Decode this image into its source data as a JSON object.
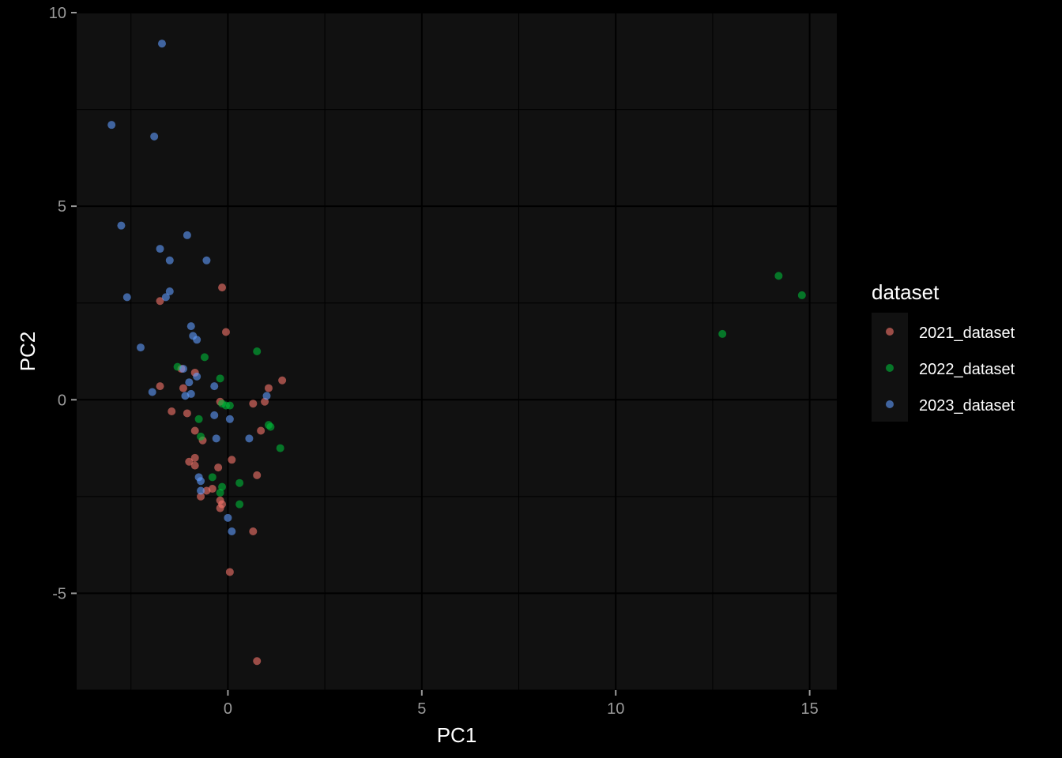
{
  "chart_data": {
    "type": "scatter",
    "title": "",
    "xlabel": "PC1",
    "ylabel": "PC2",
    "xlim": [
      -3.9,
      15.7
    ],
    "ylim": [
      -7.5,
      10.0
    ],
    "x_ticks": [
      0,
      5,
      10,
      15
    ],
    "y_ticks": [
      -5,
      0,
      5,
      10
    ],
    "x_tick_labels": [
      "0",
      "5",
      "10",
      "15"
    ],
    "y_tick_labels": [
      "-5",
      "0",
      "5",
      "10"
    ],
    "grid": true,
    "legend_position": "right",
    "legend_title": "dataset",
    "background": "#111111",
    "series": [
      {
        "name": "2021_dataset",
        "color": "#f8766d",
        "points": [
          [
            -0.15,
            2.9
          ],
          [
            -0.05,
            1.75
          ],
          [
            -1.75,
            2.55
          ],
          [
            -1.75,
            0.35
          ],
          [
            -1.2,
            0.8
          ],
          [
            -0.85,
            0.7
          ],
          [
            -1.15,
            0.3
          ],
          [
            -1.45,
            -0.3
          ],
          [
            -1.05,
            -0.35
          ],
          [
            -0.85,
            -0.8
          ],
          [
            -0.2,
            -0.05
          ],
          [
            0.65,
            -0.1
          ],
          [
            0.95,
            -0.05
          ],
          [
            1.05,
            0.3
          ],
          [
            1.4,
            0.5
          ],
          [
            0.85,
            -0.8
          ],
          [
            -0.65,
            -1.05
          ],
          [
            -1.0,
            -1.6
          ],
          [
            -0.85,
            -1.5
          ],
          [
            -0.85,
            -1.7
          ],
          [
            -0.25,
            -1.75
          ],
          [
            0.1,
            -1.55
          ],
          [
            0.75,
            -1.95
          ],
          [
            -0.7,
            -2.5
          ],
          [
            -0.55,
            -2.35
          ],
          [
            -0.4,
            -2.3
          ],
          [
            -0.2,
            -2.6
          ],
          [
            -0.2,
            -2.8
          ],
          [
            -0.15,
            -2.7
          ],
          [
            0.65,
            -3.4
          ],
          [
            0.05,
            -4.45
          ],
          [
            0.75,
            -6.75
          ]
        ]
      },
      {
        "name": "2022_dataset",
        "color": "#00ba38",
        "points": [
          [
            -1.3,
            0.85
          ],
          [
            -0.6,
            1.1
          ],
          [
            0.75,
            1.25
          ],
          [
            -0.2,
            0.55
          ],
          [
            -0.15,
            -0.1
          ],
          [
            -0.05,
            -0.15
          ],
          [
            0.05,
            -0.15
          ],
          [
            -0.75,
            -0.5
          ],
          [
            -0.7,
            -0.95
          ],
          [
            1.05,
            -0.65
          ],
          [
            1.1,
            -0.7
          ],
          [
            1.35,
            -1.25
          ],
          [
            -0.4,
            -2.0
          ],
          [
            -0.15,
            -2.25
          ],
          [
            0.3,
            -2.15
          ],
          [
            -0.2,
            -2.4
          ],
          [
            0.3,
            -2.7
          ],
          [
            12.75,
            1.7
          ],
          [
            14.2,
            3.2
          ],
          [
            14.8,
            2.7
          ]
        ]
      },
      {
        "name": "2023_dataset",
        "color": "#619cff",
        "points": [
          [
            -1.7,
            9.2
          ],
          [
            -3.0,
            7.1
          ],
          [
            -1.9,
            6.8
          ],
          [
            -2.75,
            4.5
          ],
          [
            -1.05,
            4.25
          ],
          [
            -1.75,
            3.9
          ],
          [
            -1.5,
            3.6
          ],
          [
            -0.55,
            3.6
          ],
          [
            -1.5,
            2.8
          ],
          [
            -1.6,
            2.65
          ],
          [
            -2.6,
            2.65
          ],
          [
            -0.95,
            1.9
          ],
          [
            -0.9,
            1.65
          ],
          [
            -0.8,
            1.55
          ],
          [
            -2.25,
            1.35
          ],
          [
            -1.15,
            0.8
          ],
          [
            -0.8,
            0.6
          ],
          [
            -1.0,
            0.45
          ],
          [
            -0.35,
            0.35
          ],
          [
            -1.95,
            0.2
          ],
          [
            -0.95,
            0.15
          ],
          [
            -1.1,
            0.1
          ],
          [
            1.0,
            0.1
          ],
          [
            -0.35,
            -0.4
          ],
          [
            0.05,
            -0.5
          ],
          [
            -0.3,
            -1.0
          ],
          [
            0.55,
            -1.0
          ],
          [
            -0.75,
            -2.0
          ],
          [
            -0.7,
            -2.1
          ],
          [
            -0.7,
            -2.35
          ],
          [
            0.0,
            -3.05
          ],
          [
            0.1,
            -3.4
          ]
        ]
      }
    ]
  }
}
